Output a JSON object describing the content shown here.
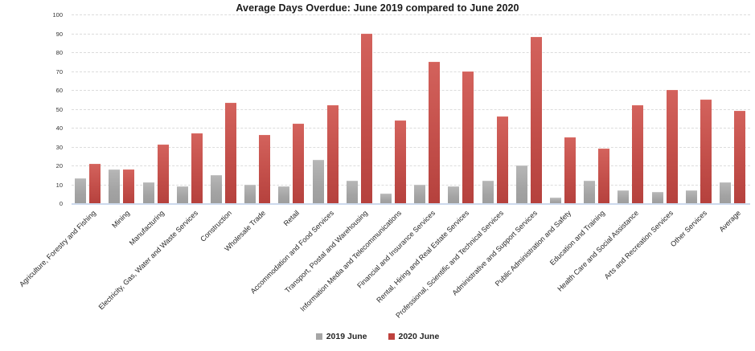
{
  "title": "Average Days Overdue: June 2019 compared to June 2020",
  "chart_data": {
    "type": "bar",
    "title": "Average Days Overdue: June 2019 compared to June 2020",
    "categories": [
      "Agriculture, Forestry and Fishing",
      "Mining",
      "Manufacturing",
      "Electricity, Gas, Water and Waste Services",
      "Construction",
      "Wholesale Trade",
      "Retail",
      "Accommodation and Food Services",
      "Transport, Postal and Warehousing",
      "Information Media and Telecommunications",
      "Financial and Insurance Services",
      "Rental, Hiring and Real Estate Services",
      "Professional, Scientific and Technical Services",
      "Administrative and Support Services",
      "Public Administration and Safety",
      "Education and Training",
      "Health Care and Social Assistance",
      "Arts and Recreation Services",
      "Other Services",
      "Average"
    ],
    "series": [
      {
        "name": "2019 June",
        "color": "#a6a6a6",
        "values": [
          13,
          18,
          11,
          9,
          15,
          10,
          9,
          23,
          12,
          5,
          10,
          9,
          12,
          20,
          3,
          12,
          7,
          6,
          7,
          11
        ]
      },
      {
        "name": "2020 June",
        "color": "#bf423e",
        "values": [
          21,
          18,
          31,
          37,
          53,
          36,
          42,
          52,
          90,
          44,
          75,
          70,
          46,
          88,
          35,
          29,
          52,
          60,
          55,
          49
        ]
      }
    ],
    "xlabel": "",
    "ylabel": "",
    "ylim": [
      0,
      100
    ],
    "yticks": [
      0,
      10,
      20,
      30,
      40,
      50,
      60,
      70,
      80,
      90,
      100
    ],
    "grid": "horizontal-dashed",
    "gridline_color": "#dcdcdc",
    "baseline_color": "#ccd9ec",
    "legend_position": "bottom-center",
    "bar_label_rotation": -45
  }
}
